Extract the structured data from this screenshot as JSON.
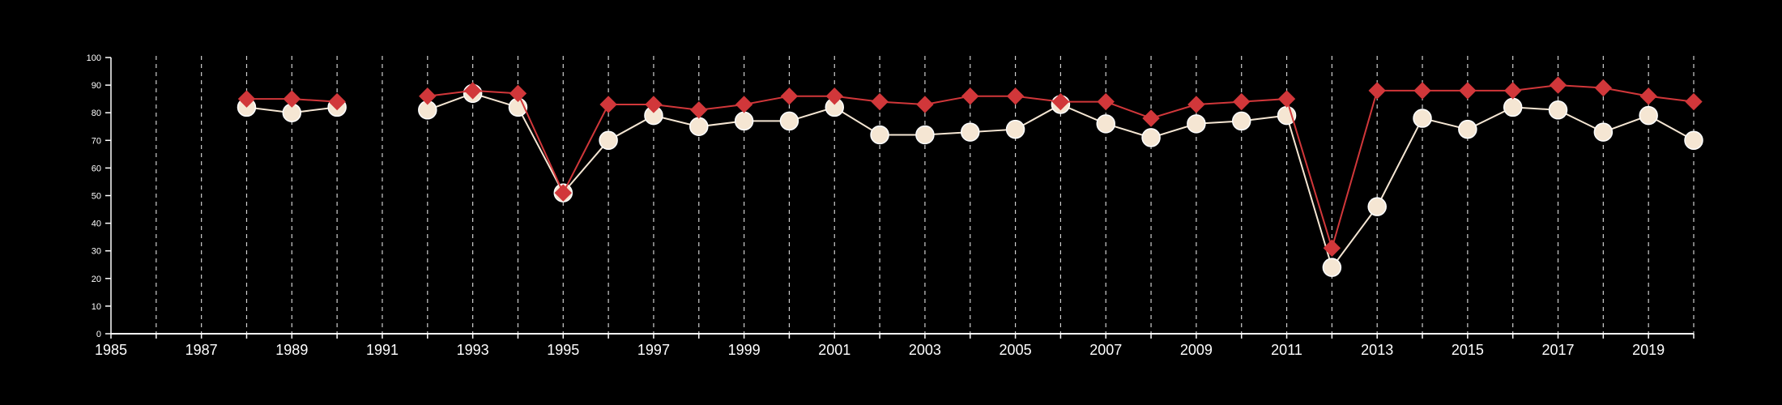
{
  "chart_data": {
    "type": "line",
    "title": "",
    "xlabel": "",
    "ylabel": "",
    "xlim": [
      1985,
      2020
    ],
    "ylim": [
      0,
      100
    ],
    "x_tick_labels": [
      "1985",
      "1987",
      "1989",
      "1991",
      "1993",
      "1995",
      "1997",
      "1999",
      "2001",
      "2003",
      "2005",
      "2007",
      "2009",
      "2011",
      "2013",
      "2015",
      "2017",
      "2019"
    ],
    "y_tick_labels": [
      "0",
      "10",
      "20",
      "30",
      "40",
      "50",
      "60",
      "70",
      "80",
      "90",
      "100"
    ],
    "grid": "vertical dashed at every year",
    "series": [
      {
        "marker": "diamond",
        "color": "#d1373a",
        "points": [
          [
            1988,
            85
          ],
          [
            1989,
            85
          ],
          [
            1990,
            84
          ],
          [
            1992,
            86
          ],
          [
            1993,
            88
          ],
          [
            1994,
            87
          ],
          [
            1995,
            51
          ],
          [
            1996,
            83
          ],
          [
            1997,
            83
          ],
          [
            1998,
            81
          ],
          [
            1999,
            83
          ],
          [
            2000,
            86
          ],
          [
            2001,
            86
          ],
          [
            2002,
            84
          ],
          [
            2003,
            83
          ],
          [
            2004,
            86
          ],
          [
            2005,
            86
          ],
          [
            2006,
            84
          ],
          [
            2007,
            84
          ],
          [
            2008,
            78
          ],
          [
            2009,
            83
          ],
          [
            2010,
            84
          ],
          [
            2011,
            85
          ],
          [
            2012,
            31
          ],
          [
            2013,
            88
          ],
          [
            2014,
            88
          ],
          [
            2015,
            88
          ],
          [
            2016,
            88
          ],
          [
            2017,
            90
          ],
          [
            2018,
            89
          ],
          [
            2019,
            86
          ],
          [
            2020,
            84
          ]
        ],
        "segments": [
          [
            1988,
            1990
          ],
          [
            1992,
            2020
          ]
        ]
      },
      {
        "marker": "circle",
        "color": "#f5e6d3",
        "points": [
          [
            1988,
            82
          ],
          [
            1989,
            80
          ],
          [
            1990,
            82
          ],
          [
            1992,
            81
          ],
          [
            1993,
            87
          ],
          [
            1994,
            82
          ],
          [
            1995,
            51
          ],
          [
            1996,
            70
          ],
          [
            1997,
            79
          ],
          [
            1998,
            75
          ],
          [
            1999,
            77
          ],
          [
            2000,
            77
          ],
          [
            2001,
            82
          ],
          [
            2002,
            72
          ],
          [
            2003,
            72
          ],
          [
            2004,
            73
          ],
          [
            2005,
            74
          ],
          [
            2006,
            83
          ],
          [
            2007,
            76
          ],
          [
            2008,
            71
          ],
          [
            2009,
            76
          ],
          [
            2010,
            77
          ],
          [
            2011,
            79
          ],
          [
            2012,
            24
          ],
          [
            2013,
            46
          ],
          [
            2014,
            78
          ],
          [
            2015,
            74
          ],
          [
            2016,
            82
          ],
          [
            2017,
            81
          ],
          [
            2018,
            73
          ],
          [
            2019,
            79
          ],
          [
            2020,
            70
          ]
        ],
        "segments": [
          [
            1988,
            1990
          ],
          [
            1992,
            2020
          ]
        ]
      }
    ]
  }
}
